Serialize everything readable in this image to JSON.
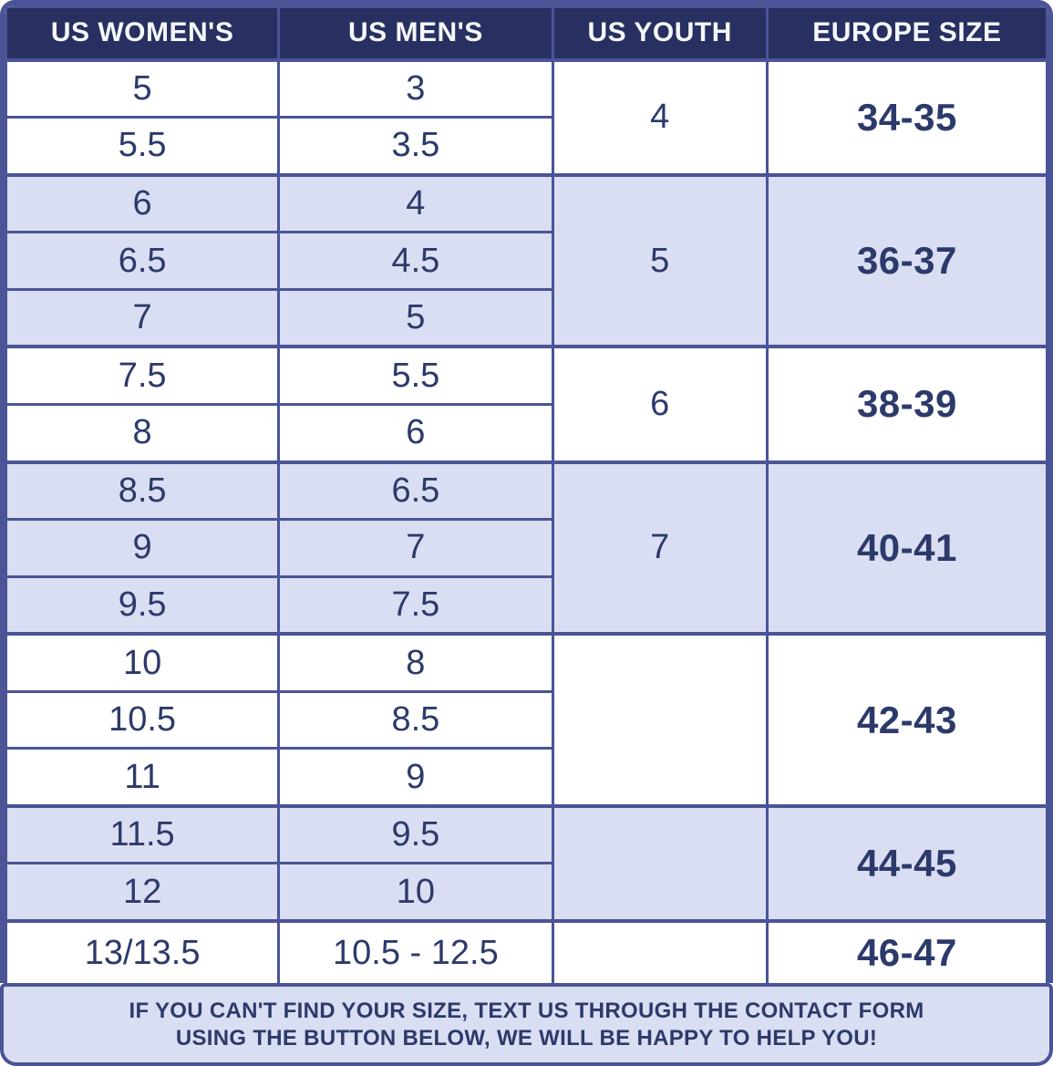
{
  "colors": {
    "border": "#4a5497",
    "header_bg": "#273060",
    "shaded_row_bg": "#dadef2",
    "text": "#2c3a6b",
    "footer_bg": "#dadef2"
  },
  "table": {
    "headers": [
      "US WOMEN'S",
      "US MEN'S",
      "US YOUTH",
      "EUROPE SIZE"
    ],
    "groups": [
      {
        "shaded": false,
        "women": [
          "5",
          "5.5"
        ],
        "men": [
          "3",
          "3.5"
        ],
        "youth": "4",
        "europe": "34-35"
      },
      {
        "shaded": true,
        "women": [
          "6",
          "6.5",
          "7"
        ],
        "men": [
          "4",
          "4.5",
          "5"
        ],
        "youth": "5",
        "europe": "36-37"
      },
      {
        "shaded": false,
        "women": [
          "7.5",
          "8"
        ],
        "men": [
          "5.5",
          "6"
        ],
        "youth": "6",
        "europe": "38-39"
      },
      {
        "shaded": true,
        "women": [
          "8.5",
          "9",
          "9.5"
        ],
        "men": [
          "6.5",
          "7",
          "7.5"
        ],
        "youth": "7",
        "europe": "40-41"
      },
      {
        "shaded": false,
        "women": [
          "10",
          "10.5",
          "11"
        ],
        "men": [
          "8",
          "8.5",
          "9"
        ],
        "youth": "",
        "europe": "42-43"
      },
      {
        "shaded": true,
        "women": [
          "11.5",
          "12"
        ],
        "men": [
          "9.5",
          "10"
        ],
        "youth": "",
        "europe": "44-45"
      },
      {
        "shaded": false,
        "women": [
          "13/13.5"
        ],
        "men": [
          "10.5 - 12.5"
        ],
        "youth": "",
        "europe": "46-47"
      }
    ]
  },
  "chart_data": {
    "type": "table",
    "columns": [
      "US WOMEN'S",
      "US MEN'S",
      "US YOUTH",
      "EUROPE SIZE"
    ],
    "rows": [
      [
        "5",
        "3",
        "4",
        "34-35"
      ],
      [
        "5.5",
        "3.5",
        "4",
        "34-35"
      ],
      [
        "6",
        "4",
        "5",
        "36-37"
      ],
      [
        "6.5",
        "4.5",
        "5",
        "36-37"
      ],
      [
        "7",
        "5",
        "5",
        "36-37"
      ],
      [
        "7.5",
        "5.5",
        "6",
        "38-39"
      ],
      [
        "8",
        "6",
        "6",
        "38-39"
      ],
      [
        "8.5",
        "6.5",
        "7",
        "40-41"
      ],
      [
        "9",
        "7",
        "7",
        "40-41"
      ],
      [
        "9.5",
        "7.5",
        "7",
        "40-41"
      ],
      [
        "10",
        "8",
        "",
        "42-43"
      ],
      [
        "10.5",
        "8.5",
        "",
        "42-43"
      ],
      [
        "11",
        "9",
        "",
        "42-43"
      ],
      [
        "11.5",
        "9.5",
        "",
        "44-45"
      ],
      [
        "12",
        "10",
        "",
        "44-45"
      ],
      [
        "13/13.5",
        "10.5 - 12.5",
        "",
        "46-47"
      ]
    ]
  },
  "footer": {
    "line1": "IF YOU CAN'T FIND YOUR SIZE, TEXT US THROUGH THE CONTACT FORM",
    "line2": "USING THE BUTTON BELOW, WE WILL BE HAPPY TO HELP YOU!"
  }
}
